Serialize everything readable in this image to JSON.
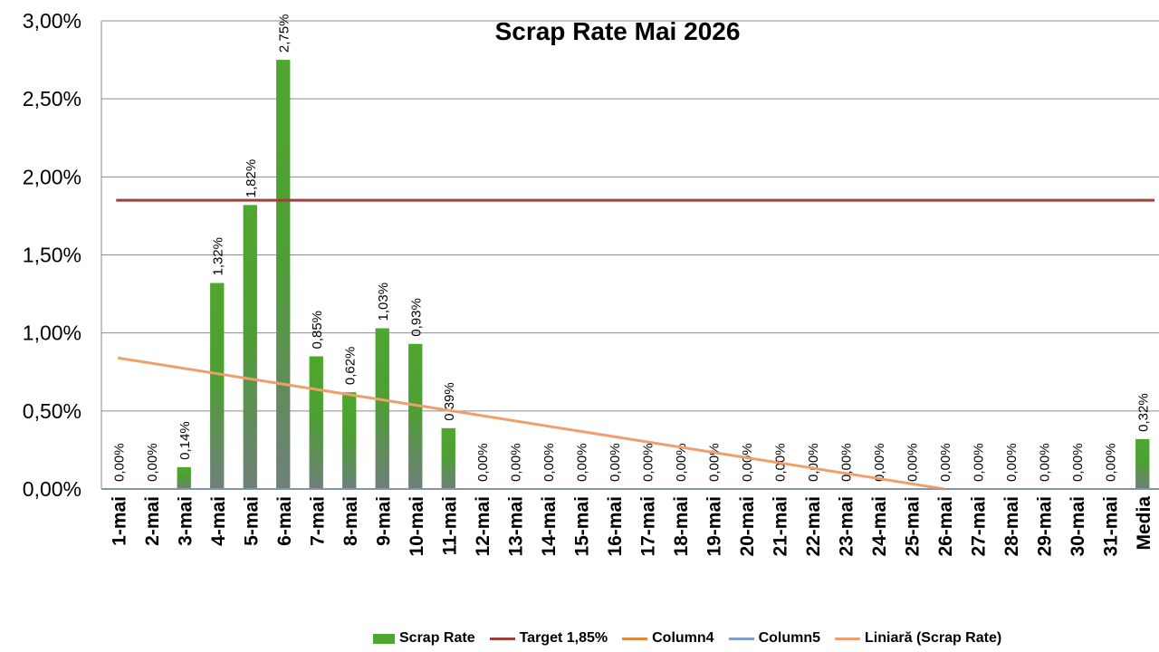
{
  "chart_data": {
    "type": "bar",
    "title": "Scrap Rate Mai 2026",
    "categories": [
      "1-mai",
      "2-mai",
      "3-mai",
      "4-mai",
      "5-mai",
      "6-mai",
      "7-mai",
      "8-mai",
      "9-mai",
      "10-mai",
      "11-mai",
      "12-mai",
      "13-mai",
      "14-mai",
      "15-mai",
      "16-mai",
      "17-mai",
      "18-mai",
      "19-mai",
      "20-mai",
      "21-mai",
      "22-mai",
      "23-mai",
      "24-mai",
      "25-mai",
      "26-mai",
      "27-mai",
      "28-mai",
      "29-mai",
      "30-mai",
      "31-mai",
      "Media"
    ],
    "y_ticks": [
      "0,00%",
      "0,50%",
      "1,00%",
      "1,50%",
      "2,00%",
      "2,50%",
      "3,00%"
    ],
    "ylim": [
      0,
      3.0
    ],
    "y_unit": "%",
    "grid": true,
    "legend_position": "bottom",
    "series": [
      {
        "name": "Scrap Rate",
        "kind": "bar",
        "color": "#4ea72e",
        "values": [
          0.0,
          0.0,
          0.14,
          1.32,
          1.82,
          2.75,
          0.85,
          0.62,
          1.03,
          0.93,
          0.39,
          0.0,
          0.0,
          0.0,
          0.0,
          0.0,
          0.0,
          0.0,
          0.0,
          0.0,
          0.0,
          0.0,
          0.0,
          0.0,
          0.0,
          0.0,
          0.0,
          0.0,
          0.0,
          0.0,
          0.0,
          0.32
        ],
        "labels": [
          "0,00%",
          "0,00%",
          "0,14%",
          "1,32%",
          "1,82%",
          "2,75%",
          "0,85%",
          "0,62%",
          "1,03%",
          "0,93%",
          "0,39%",
          "0,00%",
          "0,00%",
          "0,00%",
          "0,00%",
          "0,00%",
          "0,00%",
          "0,00%",
          "0,00%",
          "0,00%",
          "0,00%",
          "0,00%",
          "0,00%",
          "0,00%",
          "0,00%",
          "0,00%",
          "0,00%",
          "0,00%",
          "0,00%",
          "0,00%",
          "0,00%",
          "0,32%"
        ]
      },
      {
        "name": "Target 1,85%",
        "kind": "line",
        "color": "#a0403b",
        "value": 1.85
      },
      {
        "name": "Column4",
        "kind": "line",
        "color": "#e28a3c",
        "value": 0
      },
      {
        "name": "Column5",
        "kind": "line",
        "color": "#7f9cc9",
        "value": 0
      },
      {
        "name": "Liniară (Scrap Rate)",
        "kind": "trendline",
        "color": "#ed9f6c",
        "start": {
          "x": "1-mai",
          "y": 0.84
        },
        "end": {
          "x": "26-mai",
          "y": 0.0
        }
      }
    ]
  }
}
